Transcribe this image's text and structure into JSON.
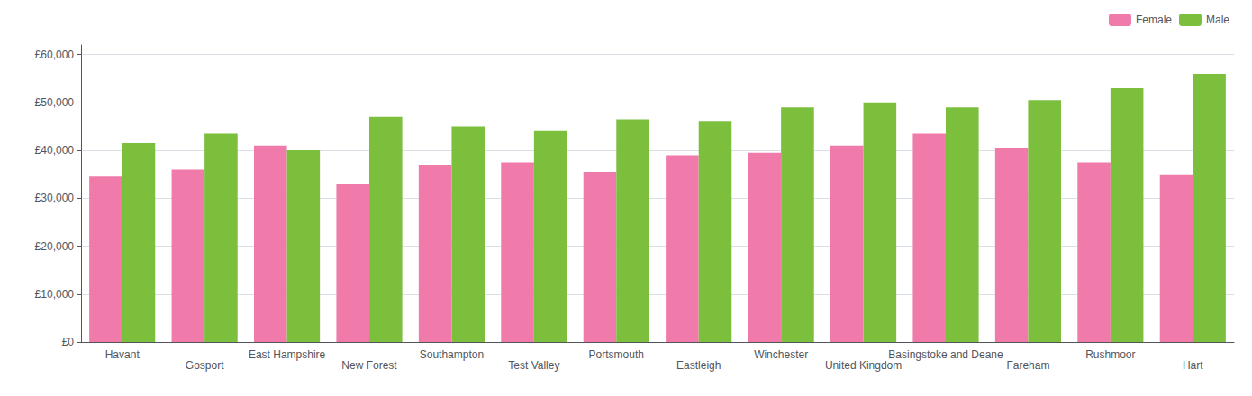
{
  "chart_data": {
    "type": "bar",
    "categories": [
      "Havant",
      "Gosport",
      "East Hampshire",
      "New Forest",
      "Southampton",
      "Test Valley",
      "Portsmouth",
      "Eastleigh",
      "Winchester",
      "United Kingdom",
      "Basingstoke and Deane",
      "Fareham",
      "Rushmoor",
      "Hart"
    ],
    "series": [
      {
        "name": "Female",
        "color": "#f07aaa",
        "values": [
          34500,
          36000,
          41000,
          33000,
          37000,
          37500,
          35500,
          39000,
          39500,
          41000,
          43500,
          40500,
          37500,
          35000
        ]
      },
      {
        "name": "Male",
        "color": "#7bbf3c",
        "values": [
          41500,
          43500,
          40000,
          47000,
          45000,
          44000,
          46500,
          46000,
          49000,
          50000,
          49000,
          50500,
          53000,
          56000
        ]
      }
    ],
    "ylim": [
      0,
      62000
    ],
    "yticks": [
      {
        "value": 0,
        "label": "£0"
      },
      {
        "value": 10000,
        "label": "£10,000"
      },
      {
        "value": 20000,
        "label": "£20,000"
      },
      {
        "value": 30000,
        "label": "£30,000"
      },
      {
        "value": 40000,
        "label": "£40,000"
      },
      {
        "value": 50000,
        "label": "£50,000"
      },
      {
        "value": 60000,
        "label": "£60,000"
      }
    ],
    "grid": true,
    "legend": "upper right"
  }
}
